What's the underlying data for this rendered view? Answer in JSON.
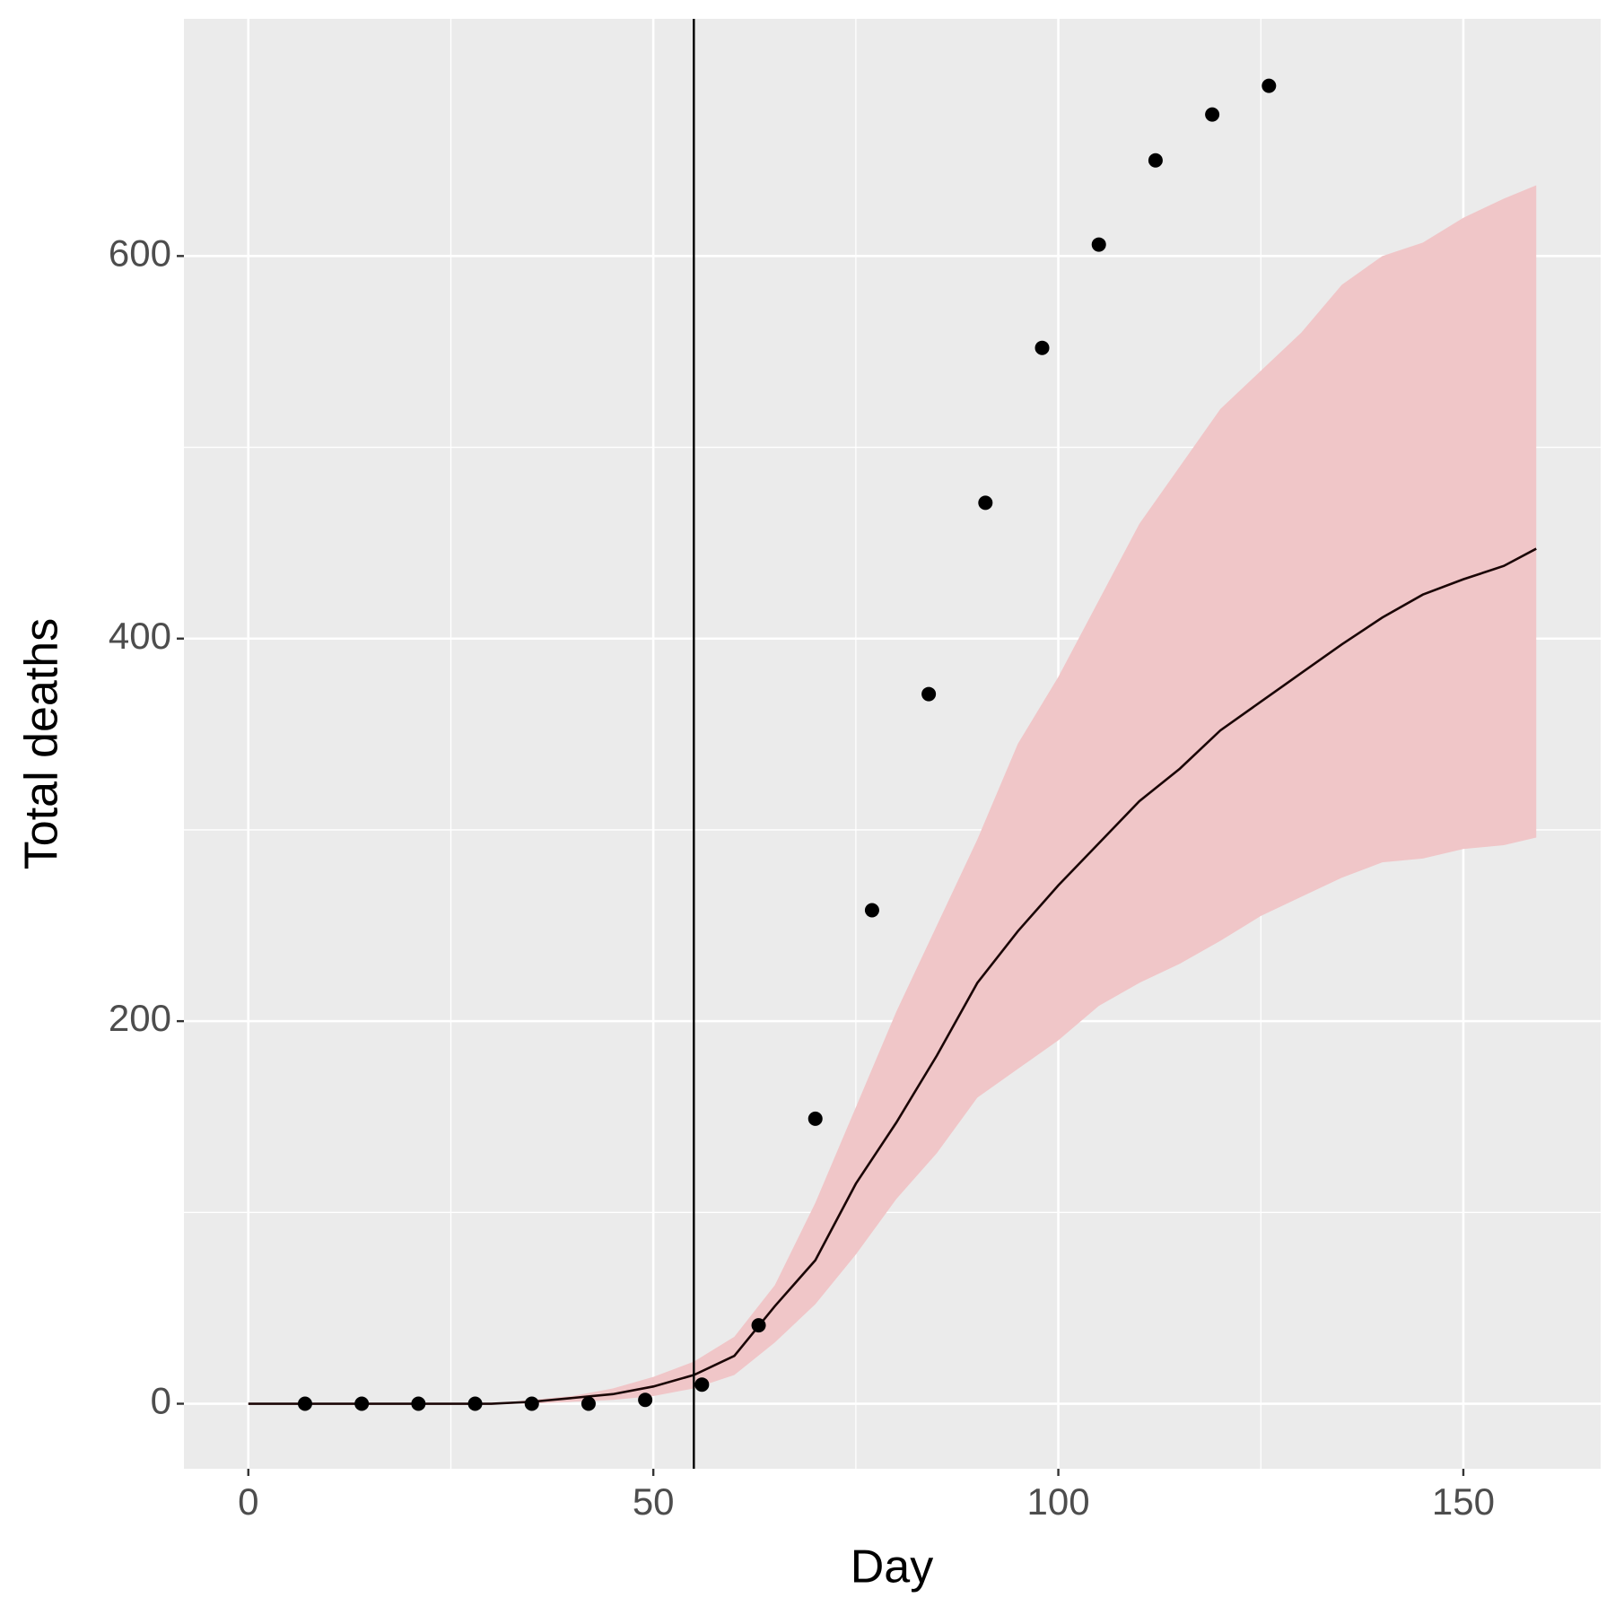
{
  "chart_data": {
    "type": "line",
    "x_label": "Day",
    "y_label": "Total deaths",
    "xlim": [
      -7.95,
      166.95
    ],
    "ylim": [
      -34,
      724
    ],
    "xticks": [
      0,
      50,
      100,
      150
    ],
    "yticks": [
      0,
      200,
      400,
      600
    ],
    "xminor": [
      25,
      75,
      125
    ],
    "yminor": [
      100,
      300,
      500
    ],
    "grid": true,
    "panel_color": "#ebebeb",
    "band": {
      "color": "#f0c6c8",
      "x": [
        0,
        5,
        10,
        15,
        20,
        25,
        30,
        35,
        40,
        45,
        50,
        55,
        60,
        65,
        70,
        75,
        80,
        85,
        90,
        95,
        100,
        105,
        110,
        115,
        120,
        125,
        130,
        135,
        140,
        145,
        150,
        155,
        159
      ],
      "upper": [
        0,
        0,
        0,
        0,
        0,
        0,
        0,
        2,
        4,
        8,
        14,
        22,
        35,
        62,
        105,
        155,
        205,
        250,
        295,
        345,
        380,
        420,
        460,
        490,
        520,
        540,
        560,
        585,
        600,
        607,
        620,
        630,
        637
      ],
      "lower": [
        0,
        0,
        0,
        0,
        0,
        0,
        0,
        0,
        1,
        2,
        4,
        8,
        15,
        32,
        52,
        78,
        107,
        131,
        160,
        175,
        190,
        208,
        220,
        230,
        242,
        255,
        265,
        275,
        283,
        285,
        290,
        292,
        296
      ]
    },
    "line": {
      "color": "#1a0505",
      "x": [
        0,
        5,
        10,
        15,
        20,
        25,
        30,
        35,
        40,
        45,
        50,
        55,
        60,
        65,
        70,
        75,
        80,
        85,
        90,
        95,
        100,
        105,
        110,
        115,
        120,
        125,
        130,
        135,
        140,
        145,
        150,
        155,
        159
      ],
      "values": [
        0,
        0,
        0,
        0,
        0,
        0,
        0,
        1,
        3,
        5,
        9,
        15,
        25,
        51,
        75,
        115,
        147,
        182,
        220,
        247,
        271,
        293,
        315,
        332,
        352,
        367,
        382,
        397,
        411,
        423,
        431,
        438,
        447
      ]
    },
    "points": {
      "color": "#000000",
      "x": [
        7,
        14,
        21,
        28,
        35,
        42,
        49,
        56,
        63,
        70,
        77,
        84,
        91,
        98,
        105,
        112,
        119,
        126
      ],
      "values": [
        0,
        0,
        0,
        0,
        0,
        0,
        2,
        10,
        41,
        149,
        258,
        371,
        471,
        552,
        606,
        650,
        674,
        689
      ]
    },
    "vline": {
      "x": 55,
      "color": "#000000"
    }
  }
}
